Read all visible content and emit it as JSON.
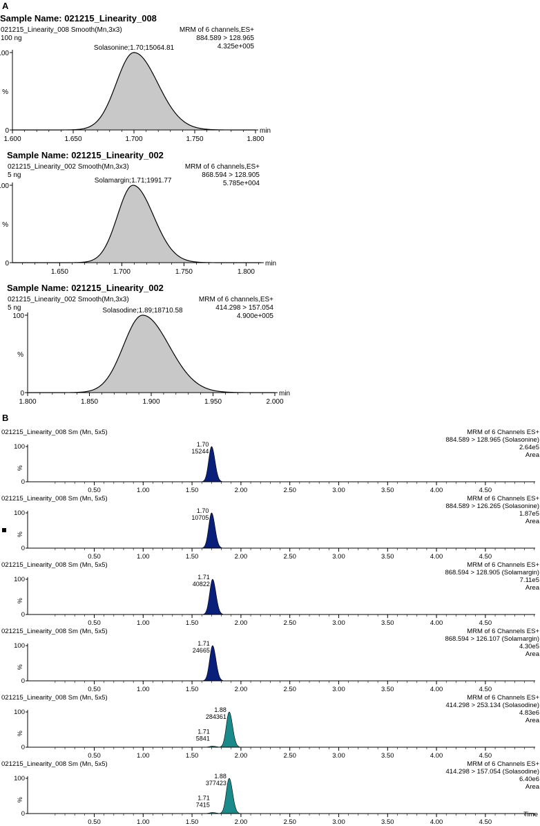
{
  "panel_labels": [
    "A",
    "B"
  ],
  "chart_data": [
    {
      "type": "area",
      "panel": "A",
      "title": "Sample Name: 021215_Linearity_008",
      "header_left": [
        "021215_Linearity_008 Smooth(Mn,3x3)",
        "100 ng"
      ],
      "header_right": [
        "MRM of 6 channels,ES+",
        "884.589 > 128.965",
        "4.325e+005"
      ],
      "peak_label": "Solasonine;1.70;15064.81",
      "peak": {
        "rt": 1.7,
        "sigma_left": 0.0145,
        "sigma_right": 0.0195
      },
      "xlim": [
        1.6,
        1.8
      ],
      "xticks": [
        "1.600",
        "1.650",
        "1.700",
        "1.750",
        "1.800"
      ],
      "xlabel": "min",
      "yticks": [
        "0",
        "100"
      ],
      "ylabel": "%",
      "fill": "#c8c8c8"
    },
    {
      "type": "area",
      "panel": "A",
      "title": "Sample Name: 021215_Linearity_002",
      "header_left": [
        "021215_Linearity_002 Smooth(Mn,3x3)",
        "5 ng"
      ],
      "header_right": [
        "MRM of 6 channels,ES+",
        "868.594 > 128.905",
        "5.785e+004"
      ],
      "peak_label": "Solamargin;1.71;1991.77",
      "peak": {
        "rt": 1.709,
        "sigma_left": 0.0125,
        "sigma_right": 0.0165
      },
      "xlim": [
        1.612,
        1.812
      ],
      "xticks": [
        "1.650",
        "1.700",
        "1.750",
        "1.800"
      ],
      "xlabel": "min",
      "yticks": [
        "0",
        "100"
      ],
      "ylabel": "%",
      "fill": "#c8c8c8"
    },
    {
      "type": "area",
      "panel": "A",
      "title": "Sample Name: 021215_Linearity_002",
      "header_left": [
        "021215_Linearity_002 Smooth(Mn,3x3)",
        "5 ng"
      ],
      "header_right": [
        "MRM of 6 channels,ES+",
        "414.298 > 157.054",
        "4.900e+005"
      ],
      "peak_label": "Solasodine;1.89;18710.58",
      "peak": {
        "rt": 1.893,
        "sigma_left": 0.0155,
        "sigma_right": 0.0215
      },
      "xlim": [
        1.8,
        2.0
      ],
      "xticks": [
        "1.800",
        "1.850",
        "1.900",
        "1.950",
        "2.000"
      ],
      "xlabel": "min",
      "yticks": [
        "0",
        "100"
      ],
      "ylabel": "%",
      "fill": "#c8c8c8"
    },
    {
      "type": "area",
      "panel": "B",
      "header_left": "021215_Linearity_008 Sm (Mn, 5x5)",
      "header_right": [
        "MRM of 6 Channels ES+",
        "884.589 > 128.965 (Solasonine)",
        "2.64e5",
        "Area"
      ],
      "peaks": [
        {
          "rt": 1.7,
          "height": 100,
          "labels": [
            "1.70",
            "15244"
          ]
        }
      ],
      "fill": "#0a1f7a",
      "xlim": [
        0.0,
        5.0
      ],
      "xticks": [
        "0.50",
        "1.00",
        "1.50",
        "2.00",
        "2.50",
        "3.00",
        "3.50",
        "4.00",
        "4.50"
      ],
      "yticks": [
        "0",
        "100"
      ],
      "ylabel": "%"
    },
    {
      "type": "area",
      "panel": "B",
      "header_left": "021215_Linearity_008 Sm (Mn, 5x5)",
      "header_right": [
        "MRM of 6 Channels ES+",
        "884.589 > 126.265 (Solasonine)",
        "1.87e5",
        "Area"
      ],
      "peaks": [
        {
          "rt": 1.7,
          "height": 100,
          "labels": [
            "1.70",
            "10705"
          ]
        }
      ],
      "fill": "#0a1f7a",
      "xlim": [
        0.0,
        5.0
      ],
      "xticks": [
        "0.50",
        "1.00",
        "1.50",
        "2.00",
        "2.50",
        "3.00",
        "3.50",
        "4.00",
        "4.50"
      ],
      "yticks": [
        "0",
        "100"
      ],
      "ylabel": "%"
    },
    {
      "type": "area",
      "panel": "B",
      "header_left": "021215_Linearity_008 Sm (Mn, 5x5)",
      "header_right": [
        "MRM of 6 Channels ES+",
        "868.594 > 128.905 (Solamargin)",
        "7.11e5",
        "Area"
      ],
      "peaks": [
        {
          "rt": 1.71,
          "height": 100,
          "labels": [
            "1.71",
            "40822"
          ]
        }
      ],
      "fill": "#0a1f7a",
      "xlim": [
        0.0,
        5.0
      ],
      "xticks": [
        "0.50",
        "1.00",
        "1.50",
        "2.00",
        "2.50",
        "3.00",
        "3.50",
        "4.00",
        "4.50"
      ],
      "yticks": [
        "0",
        "100"
      ],
      "ylabel": "%"
    },
    {
      "type": "area",
      "panel": "B",
      "header_left": "021215_Linearity_008 Sm (Mn, 5x5)",
      "header_right": [
        "MRM of 6 Channels ES+",
        "868.594 > 126.107 (Solamargin)",
        "4.30e5",
        "Area"
      ],
      "peaks": [
        {
          "rt": 1.71,
          "height": 100,
          "labels": [
            "1.71",
            "24665"
          ]
        }
      ],
      "fill": "#0a1f7a",
      "xlim": [
        0.0,
        5.0
      ],
      "xticks": [
        "0.50",
        "1.00",
        "1.50",
        "2.00",
        "2.50",
        "3.00",
        "3.50",
        "4.00",
        "4.50"
      ],
      "yticks": [
        "0",
        "100"
      ],
      "ylabel": "%"
    },
    {
      "type": "area",
      "panel": "B",
      "header_left": "021215_Linearity_008 Sm (Mn, 5x5)",
      "header_right": [
        "MRM of 6 Channels ES+",
        "414.298 > 253.134 (Solasodine)",
        "4.83e6",
        "Area"
      ],
      "peaks": [
        {
          "rt": 1.88,
          "height": 100,
          "labels": [
            "1.88",
            "284361"
          ]
        },
        {
          "rt": 1.71,
          "height": 3,
          "labels": [
            "1.71",
            "5841"
          ]
        }
      ],
      "fill": "#1a8a8a",
      "xlim": [
        0.0,
        5.0
      ],
      "xticks": [
        "0.50",
        "1.00",
        "1.50",
        "2.00",
        "2.50",
        "3.00",
        "3.50",
        "4.00",
        "4.50"
      ],
      "yticks": [
        "0",
        "100"
      ],
      "ylabel": "%"
    },
    {
      "type": "area",
      "panel": "B",
      "header_left": "021215_Linearity_008 Sm (Mn, 5x5)",
      "header_right": [
        "MRM of 6 Channels ES+",
        "414.298 > 157.054 (Solasodine)",
        "6.40e6",
        "Area"
      ],
      "peaks": [
        {
          "rt": 1.88,
          "height": 100,
          "labels": [
            "1.88",
            "377423"
          ]
        },
        {
          "rt": 1.71,
          "height": 3,
          "labels": [
            "1.71",
            "7415"
          ]
        }
      ],
      "fill": "#1a8a8a",
      "xlim": [
        0.0,
        5.0
      ],
      "xticks": [
        "0.50",
        "1.00",
        "1.50",
        "2.00",
        "2.50",
        "3.00",
        "3.50",
        "4.00",
        "4.50"
      ],
      "yticks": [
        "0",
        "100"
      ],
      "ylabel": "%",
      "xlabel": "Time"
    }
  ]
}
